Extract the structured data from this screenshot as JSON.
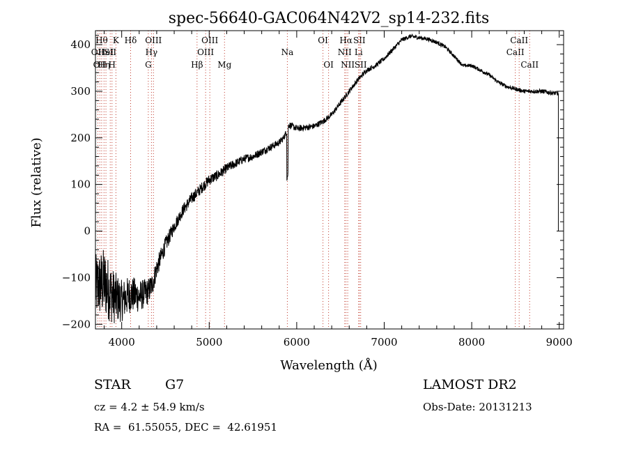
{
  "chart_data": {
    "type": "line",
    "title": "spec-56640-GAC064N42V2_sp14-232.fits",
    "xlabel": "Wavelength (Å)",
    "ylabel": "Flux (relative)",
    "xlim": [
      3700,
      9050
    ],
    "ylim": [
      -210,
      430
    ],
    "xticks": [
      4000,
      5000,
      6000,
      7000,
      8000,
      9000
    ],
    "yticks": [
      -200,
      -100,
      0,
      100,
      200,
      300,
      400
    ],
    "grid": false,
    "series": [
      {
        "line_color": "#000000",
        "noise": [
          [
            3700,
            70
          ],
          [
            3800,
            75
          ],
          [
            3900,
            60
          ],
          [
            4000,
            45
          ],
          [
            4200,
            35
          ],
          [
            4400,
            22
          ],
          [
            4600,
            14
          ],
          [
            5000,
            12
          ],
          [
            5400,
            9
          ],
          [
            6000,
            7
          ],
          [
            6500,
            6
          ],
          [
            7000,
            5
          ],
          [
            8000,
            4
          ],
          [
            9000,
            5
          ]
        ],
        "x": [
          3700,
          3800,
          3900,
          4000,
          4100,
          4200,
          4300,
          4350,
          4400,
          4500,
          4600,
          4700,
          4800,
          4900,
          5000,
          5100,
          5200,
          5300,
          5400,
          5500,
          5600,
          5700,
          5800,
          5850,
          5890,
          5910,
          5950,
          6000,
          6100,
          6200,
          6300,
          6400,
          6500,
          6600,
          6700,
          6800,
          6900,
          7000,
          7100,
          7200,
          7300,
          7400,
          7500,
          7600,
          7700,
          7800,
          7900,
          8000,
          8100,
          8200,
          8300,
          8400,
          8500,
          8600,
          8700,
          8800,
          8900,
          8990
        ],
        "y": [
          -120,
          -110,
          -140,
          -150,
          -135,
          -140,
          -130,
          -115,
          -80,
          -30,
          10,
          45,
          70,
          90,
          110,
          120,
          135,
          145,
          155,
          160,
          170,
          180,
          190,
          200,
          215,
          228,
          225,
          220,
          222,
          225,
          235,
          250,
          275,
          300,
          325,
          345,
          355,
          370,
          390,
          410,
          418,
          415,
          412,
          405,
          395,
          375,
          355,
          355,
          345,
          335,
          320,
          310,
          305,
          300,
          300,
          300,
          297,
          295
        ]
      }
    ],
    "line_color": "#c0392b",
    "spectral_lines": [
      {
        "wl": 3727,
        "label": "OII",
        "row": 2
      },
      {
        "wl": 3750,
        "label": "OII",
        "row": 3
      },
      {
        "wl": 3771,
        "label": "Hθ",
        "row": 1
      },
      {
        "wl": 3798,
        "label": "Hη",
        "row": 3
      },
      {
        "wl": 3820,
        "label": "HeI",
        "row": 2
      },
      {
        "wl": 3869,
        "label": "SII",
        "row": 2
      },
      {
        "wl": 3889,
        "label": "H",
        "row": 3
      },
      {
        "wl": 3934,
        "label": "K",
        "row": 1
      },
      {
        "wl": 4102,
        "label": "Hδ",
        "row": 1
      },
      {
        "wl": 4304,
        "label": "G",
        "row": 3
      },
      {
        "wl": 4340,
        "label": "Hγ",
        "row": 2
      },
      {
        "wl": 4363,
        "label": "OIII",
        "row": 1
      },
      {
        "wl": 4861,
        "label": "Hβ",
        "row": 3
      },
      {
        "wl": 4959,
        "label": "OIII",
        "row": 2
      },
      {
        "wl": 5007,
        "label": "OIII",
        "row": 1
      },
      {
        "wl": 5175,
        "label": "Mg",
        "row": 3
      },
      {
        "wl": 5893,
        "label": "Na",
        "row": 2
      },
      {
        "wl": 6300,
        "label": "OI",
        "row": 1
      },
      {
        "wl": 6364,
        "label": "OI",
        "row": 3
      },
      {
        "wl": 6548,
        "label": "NII",
        "row": 2
      },
      {
        "wl": 6563,
        "label": "Hα",
        "row": 1
      },
      {
        "wl": 6583,
        "label": "NII",
        "row": 3
      },
      {
        "wl": 6708,
        "label": "Li",
        "row": 2
      },
      {
        "wl": 6716,
        "label": "SII",
        "row": 1
      },
      {
        "wl": 6731,
        "label": "SII",
        "row": 3
      },
      {
        "wl": 8498,
        "label": "CaII",
        "row": 2
      },
      {
        "wl": 8542,
        "label": "CaII",
        "row": 1
      },
      {
        "wl": 8662,
        "label": "CaII",
        "row": 3
      }
    ]
  },
  "info": {
    "object_class": "STAR",
    "subclass": "G7",
    "cz_text": "cz = 4.2 ± 54.9 km/s",
    "coords_text": "RA =  61.55055, DEC =  42.61951",
    "survey": "LAMOST DR2",
    "obs_date": "Obs-Date: 20131213"
  }
}
